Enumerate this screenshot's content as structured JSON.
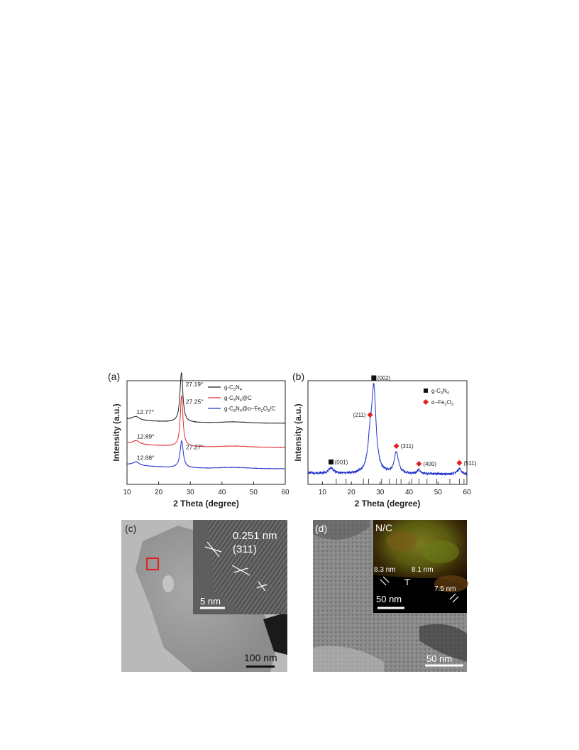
{
  "figure": {
    "panel_a_label": "(a)",
    "panel_b_label": "(b)",
    "panel_c_label": "(c)",
    "panel_d_label": "(d)"
  },
  "chart_data": [
    {
      "type": "line",
      "panel": "a",
      "xlabel": "2 Theta (degree)",
      "ylabel": "Intensity (a.u.)",
      "xlim": [
        10,
        60
      ],
      "xticks": [
        10,
        20,
        30,
        40,
        50,
        60
      ],
      "legend": {
        "placement": "top-right"
      },
      "series": [
        {
          "name": "g-C3N4",
          "color": "#222222",
          "offset": 82,
          "peaks": [
            {
              "x": 12.77,
              "label": "12.77°",
              "height": 5,
              "width": 1.2
            },
            {
              "x": 27.19,
              "label": "27.19°",
              "height": 70,
              "width": 0.55
            }
          ]
        },
        {
          "name": "g-C3N4@C",
          "color": "#e03030",
          "offset": 48,
          "peaks": [
            {
              "x": 12.89,
              "label": "12.89°",
              "height": 5,
              "width": 1.2
            },
            {
              "x": 27.25,
              "label": "27.25°",
              "height": 72,
              "width": 0.5
            }
          ]
        },
        {
          "name": "g-C3N4@α-Fe2O3/C",
          "color": "#2030cc",
          "offset": 18,
          "peaks": [
            {
              "x": 12.88,
              "label": "12.88°",
              "height": 5,
              "width": 1.2
            },
            {
              "x": 27.27,
              "label": "27.27°",
              "height": 38,
              "width": 0.6
            }
          ]
        }
      ],
      "legend_entries": [
        {
          "text": "g-C",
          "sub1": "3",
          "mid": "N",
          "sub2": "4",
          "tail": "",
          "sub3": "",
          "end": "",
          "color": "#222222"
        },
        {
          "text": "g-C",
          "sub1": "3",
          "mid": "N",
          "sub2": "4",
          "tail": "@C",
          "sub3": "",
          "end": "",
          "color": "#e03030"
        },
        {
          "text": "g-C",
          "sub1": "3",
          "mid": "N",
          "sub2": "4",
          "tail": "@α−Fe",
          "sub3": "2",
          "end": "O",
          "sub4": "3",
          "end2": "/C",
          "color": "#2030cc"
        }
      ]
    },
    {
      "type": "line",
      "panel": "b",
      "xlabel": "2 Theta (degree)",
      "ylabel": "Intensity (a.u.)",
      "xlim": [
        5,
        60
      ],
      "xticks": [
        10,
        20,
        30,
        40,
        50,
        60
      ],
      "legend": {
        "placement": "top-right"
      },
      "series": [
        {
          "name": "g-C3N4@α-Fe2O3/C",
          "color": "#2030cc",
          "peaks": [
            {
              "x": 13.0,
              "height": 8,
              "width": 1.0
            },
            {
              "x": 26.5,
              "height": 38,
              "width": 0.9
            },
            {
              "x": 27.8,
              "height": 115,
              "width": 0.9
            },
            {
              "x": 35.6,
              "height": 30,
              "width": 0.9
            },
            {
              "x": 43.4,
              "height": 6,
              "width": 0.8
            },
            {
              "x": 57.4,
              "height": 8,
              "width": 0.8
            }
          ]
        }
      ],
      "annotations": [
        {
          "x": 13.0,
          "label": "(001)",
          "marker": "square"
        },
        {
          "x": 27.8,
          "label": "(002)",
          "marker": "square"
        },
        {
          "x": 26.5,
          "label": "(211)",
          "marker": "diamond"
        },
        {
          "x": 35.6,
          "label": "(311)",
          "marker": "diamond"
        },
        {
          "x": 43.4,
          "label": "(400)",
          "marker": "diamond"
        },
        {
          "x": 57.4,
          "label": "(511)",
          "marker": "diamond"
        }
      ],
      "reference_sticks": [
        14.8,
        18.2,
        24.2,
        26.0,
        30.5,
        33.2,
        35.6,
        37.2,
        40.9,
        43.4,
        46.2,
        49.5,
        54.1,
        57.4,
        59.0
      ],
      "legend_entries": [
        {
          "marker": "square",
          "color": "#111111",
          "text": "g-C",
          "sub1": "3",
          "mid": "N",
          "sub2": "4"
        },
        {
          "marker": "diamond",
          "color": "#e02020",
          "text": "α−Fe",
          "sub1": "2",
          "mid": "O",
          "sub2": "3"
        }
      ]
    }
  ],
  "tem_c": {
    "inset_spacing": "0.251 nm",
    "inset_plane": "(311)",
    "inset_scale": "5 nm",
    "main_scale": "100 nm"
  },
  "tem_d": {
    "inset_title": "N/C",
    "thickness_1": "8.3 nm",
    "thickness_2": "8.1 nm",
    "thickness_3": "7.5 nm",
    "inset_scale": "50 nm",
    "main_scale": "50 nm"
  }
}
